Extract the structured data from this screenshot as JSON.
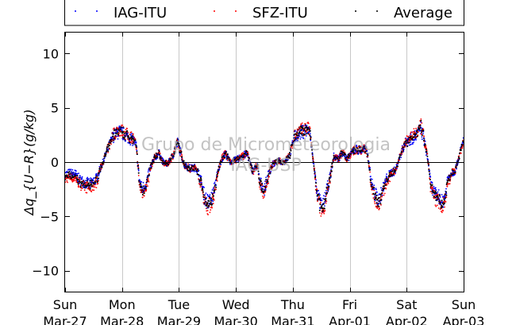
{
  "chart_data": {
    "type": "scatter",
    "ylabel": "Δq_{U−R}(g/kg)",
    "ylim": [
      -12,
      12
    ],
    "xlim": [
      0,
      7
    ],
    "yticks": [
      10,
      5,
      0,
      -5,
      -10
    ],
    "y_tick_labels": [
      "10",
      "5",
      "0",
      "−5",
      "−10"
    ],
    "x_ticks": [
      {
        "x": 0,
        "day": "Sun",
        "date": "Mar-27"
      },
      {
        "x": 1,
        "day": "Mon",
        "date": "Mar-28"
      },
      {
        "x": 2,
        "day": "Tue",
        "date": "Mar-29"
      },
      {
        "x": 3,
        "day": "Wed",
        "date": "Mar-30"
      },
      {
        "x": 4,
        "day": "Thu",
        "date": "Mar-31"
      },
      {
        "x": 5,
        "day": "Fri",
        "date": "Apr-01"
      },
      {
        "x": 6,
        "day": "Sat",
        "date": "Apr-02"
      },
      {
        "x": 7,
        "day": "Sun",
        "date": "Apr-03"
      }
    ],
    "grid": "vertical",
    "zero_line": true,
    "legend_placement": "top",
    "series": [
      {
        "name": "IAG-ITU",
        "color": "#0000ff"
      },
      {
        "name": "SFZ-ITU",
        "color": "#ff0000"
      },
      {
        "name": "Average",
        "color": "#000000"
      }
    ],
    "average_profile": [
      [
        0.0,
        -1.2
      ],
      [
        0.08,
        -1.0
      ],
      [
        0.18,
        -1.1
      ],
      [
        0.25,
        -1.6
      ],
      [
        0.35,
        -1.9
      ],
      [
        0.45,
        -2.0
      ],
      [
        0.55,
        -1.5
      ],
      [
        0.65,
        -0.2
      ],
      [
        0.75,
        1.2
      ],
      [
        0.85,
        2.4
      ],
      [
        0.95,
        2.8
      ],
      [
        1.02,
        2.6
      ],
      [
        1.1,
        2.3
      ],
      [
        1.2,
        2.0
      ],
      [
        1.25,
        1.5
      ],
      [
        1.3,
        -1.5
      ],
      [
        1.35,
        -2.5
      ],
      [
        1.42,
        -2.0
      ],
      [
        1.5,
        -0.5
      ],
      [
        1.58,
        0.5
      ],
      [
        1.65,
        0.8
      ],
      [
        1.72,
        0.0
      ],
      [
        1.8,
        -0.2
      ],
      [
        1.9,
        0.7
      ],
      [
        1.98,
        1.8
      ],
      [
        2.05,
        0.5
      ],
      [
        2.1,
        -0.3
      ],
      [
        2.2,
        -0.6
      ],
      [
        2.3,
        -0.5
      ],
      [
        2.38,
        -1.5
      ],
      [
        2.45,
        -3.2
      ],
      [
        2.52,
        -3.8
      ],
      [
        2.6,
        -3.0
      ],
      [
        2.68,
        -1.0
      ],
      [
        2.75,
        0.3
      ],
      [
        2.82,
        0.8
      ],
      [
        2.9,
        0.0
      ],
      [
        3.0,
        0.2
      ],
      [
        3.1,
        0.5
      ],
      [
        3.2,
        0.8
      ],
      [
        3.25,
        -0.2
      ],
      [
        3.3,
        -0.8
      ],
      [
        3.38,
        -0.3
      ],
      [
        3.42,
        -1.8
      ],
      [
        3.5,
        -2.5
      ],
      [
        3.58,
        -1.0
      ],
      [
        3.65,
        -0.2
      ],
      [
        3.75,
        0.1
      ],
      [
        3.85,
        0.0
      ],
      [
        3.95,
        0.7
      ],
      [
        4.02,
        2.2
      ],
      [
        4.1,
        2.6
      ],
      [
        4.18,
        2.8
      ],
      [
        4.25,
        3.0
      ],
      [
        4.3,
        2.6
      ],
      [
        4.35,
        0.5
      ],
      [
        4.42,
        -2.5
      ],
      [
        4.48,
        -3.8
      ],
      [
        4.52,
        -4.3
      ],
      [
        4.58,
        -3.0
      ],
      [
        4.65,
        -1.5
      ],
      [
        4.72,
        0.5
      ],
      [
        4.8,
        0.3
      ],
      [
        4.88,
        1.0
      ],
      [
        4.95,
        0.2
      ],
      [
        5.02,
        0.8
      ],
      [
        5.1,
        1.2
      ],
      [
        5.18,
        1.1
      ],
      [
        5.28,
        1.2
      ],
      [
        5.32,
        0.5
      ],
      [
        5.38,
        -1.8
      ],
      [
        5.45,
        -3.0
      ],
      [
        5.52,
        -3.5
      ],
      [
        5.58,
        -2.5
      ],
      [
        5.65,
        -1.5
      ],
      [
        5.72,
        -1.0
      ],
      [
        5.8,
        -0.8
      ],
      [
        5.88,
        0.5
      ],
      [
        5.95,
        1.5
      ],
      [
        6.02,
        2.0
      ],
      [
        6.1,
        2.2
      ],
      [
        6.18,
        2.5
      ],
      [
        6.25,
        3.1
      ],
      [
        6.3,
        2.2
      ],
      [
        6.38,
        0.0
      ],
      [
        6.42,
        -2.0
      ],
      [
        6.5,
        -3.0
      ],
      [
        6.58,
        -3.2
      ],
      [
        6.62,
        -3.8
      ],
      [
        6.68,
        -3.0
      ],
      [
        6.72,
        -1.5
      ],
      [
        6.78,
        -1.0
      ],
      [
        6.85,
        -0.8
      ],
      [
        6.92,
        0.5
      ],
      [
        7.0,
        2.0
      ]
    ]
  },
  "legend": {
    "items": [
      {
        "label": "IAG-ITU",
        "color": "#0000ff"
      },
      {
        "label": "SFZ-ITU",
        "color": "#ff0000"
      },
      {
        "label": "Average",
        "color": "#000000"
      }
    ]
  },
  "watermark": {
    "line1": "Grupo de Micrometeorologia",
    "line2": "IAG-USP"
  }
}
